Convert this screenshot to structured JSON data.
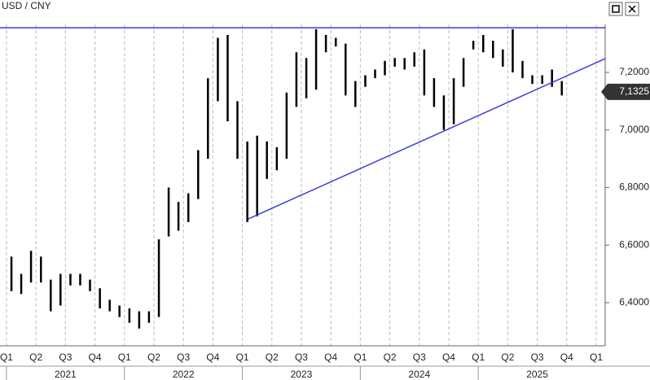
{
  "chart_data": {
    "type": "ohlc",
    "title": "USD / CNY",
    "xlim": [
      2020.945,
      2026.076
    ],
    "ylim": [
      6.25,
      7.4516
    ],
    "yticks": [
      {
        "value": 6.4,
        "label": "6,4000"
      },
      {
        "value": 6.6,
        "label": "6,6000"
      },
      {
        "value": 6.8,
        "label": "6,8000"
      },
      {
        "value": 7.0,
        "label": "7,0000"
      },
      {
        "value": 7.2,
        "label": "7,2000"
      }
    ],
    "xticks": [
      {
        "value": 2021.0,
        "label": "Q1"
      },
      {
        "value": 2021.25,
        "label": "Q2"
      },
      {
        "value": 2021.5,
        "label": "Q3"
      },
      {
        "value": 2021.75,
        "label": "Q4"
      },
      {
        "value": 2022.0,
        "label": "Q1"
      },
      {
        "value": 2022.25,
        "label": "Q2"
      },
      {
        "value": 2022.5,
        "label": "Q3"
      },
      {
        "value": 2022.75,
        "label": "Q4"
      },
      {
        "value": 2023.0,
        "label": "Q1"
      },
      {
        "value": 2023.25,
        "label": "Q2"
      },
      {
        "value": 2023.5,
        "label": "Q3"
      },
      {
        "value": 2023.75,
        "label": "Q4"
      },
      {
        "value": 2024.0,
        "label": "Q1"
      },
      {
        "value": 2024.25,
        "label": "Q2"
      },
      {
        "value": 2024.5,
        "label": "Q3"
      },
      {
        "value": 2024.75,
        "label": "Q4"
      },
      {
        "value": 2025.0,
        "label": "Q1"
      },
      {
        "value": 2025.25,
        "label": "Q2"
      },
      {
        "value": 2025.5,
        "label": "Q3"
      },
      {
        "value": 2025.75,
        "label": "Q4"
      },
      {
        "value": 2026.0,
        "label": "Q1"
      }
    ],
    "year_labels": [
      {
        "value": 2021.5,
        "label": "2021"
      },
      {
        "value": 2022.5,
        "label": "2022"
      },
      {
        "value": 2023.5,
        "label": "2023"
      },
      {
        "value": 2024.5,
        "label": "2024"
      },
      {
        "value": 2025.5,
        "label": "2025"
      }
    ],
    "grid": true,
    "series": [
      {
        "color": "#000000",
        "x": [
          2021.042,
          2021.125,
          2021.208,
          2021.292,
          2021.375,
          2021.458,
          2021.542,
          2021.625,
          2021.708,
          2021.792,
          2021.875,
          2021.958,
          2022.042,
          2022.125,
          2022.208,
          2022.292,
          2022.375,
          2022.458,
          2022.542,
          2022.625,
          2022.708,
          2022.792,
          2022.875,
          2022.958,
          2023.042,
          2023.125,
          2023.208,
          2023.292,
          2023.375,
          2023.458,
          2023.542,
          2023.625,
          2023.708,
          2023.792,
          2023.875,
          2023.958,
          2024.042,
          2024.125,
          2024.208,
          2024.292,
          2024.375,
          2024.458,
          2024.542,
          2024.625,
          2024.708,
          2024.792,
          2024.875,
          2024.958,
          2025.042,
          2025.125,
          2025.208,
          2025.292,
          2025.375,
          2025.458,
          2025.542,
          2025.625,
          2025.708
        ],
        "high": [
          6.56,
          6.5,
          6.58,
          6.56,
          6.48,
          6.5,
          6.5,
          6.5,
          6.48,
          6.45,
          6.41,
          6.39,
          6.38,
          6.37,
          6.37,
          6.62,
          6.8,
          6.75,
          6.78,
          6.93,
          7.18,
          7.32,
          7.33,
          7.1,
          6.96,
          6.98,
          6.96,
          6.94,
          7.13,
          7.27,
          7.25,
          7.35,
          7.33,
          7.32,
          7.3,
          7.17,
          7.19,
          7.21,
          7.24,
          7.25,
          7.25,
          7.27,
          7.28,
          7.18,
          7.12,
          7.18,
          7.25,
          7.31,
          7.33,
          7.31,
          7.28,
          7.35,
          7.24,
          7.19,
          7.19,
          7.21,
          7.17
        ],
        "low": [
          6.44,
          6.43,
          6.47,
          6.47,
          6.37,
          6.39,
          6.46,
          6.46,
          6.44,
          6.38,
          6.37,
          6.35,
          6.33,
          6.31,
          6.33,
          6.35,
          6.63,
          6.65,
          6.68,
          6.76,
          6.9,
          7.1,
          7.03,
          6.9,
          6.68,
          6.7,
          6.83,
          6.86,
          6.9,
          7.08,
          7.11,
          7.14,
          7.27,
          7.29,
          7.12,
          7.08,
          7.15,
          7.18,
          7.19,
          7.22,
          7.21,
          7.22,
          7.12,
          7.08,
          7.0,
          7.02,
          7.15,
          7.28,
          7.27,
          7.25,
          7.22,
          7.2,
          7.18,
          7.16,
          7.16,
          7.15,
          7.12
        ]
      }
    ],
    "lines": [
      {
        "color": "#3b3bdf",
        "x": [
          2020.945,
          2026.076
        ],
        "values": [
          7.355,
          7.355
        ]
      },
      {
        "color": "#3b3bdf",
        "x": [
          2023.05,
          2026.076
        ],
        "values": [
          6.691,
          7.248
        ]
      }
    ],
    "last_value": {
      "value": 7.1325,
      "label": "7,1325"
    }
  }
}
